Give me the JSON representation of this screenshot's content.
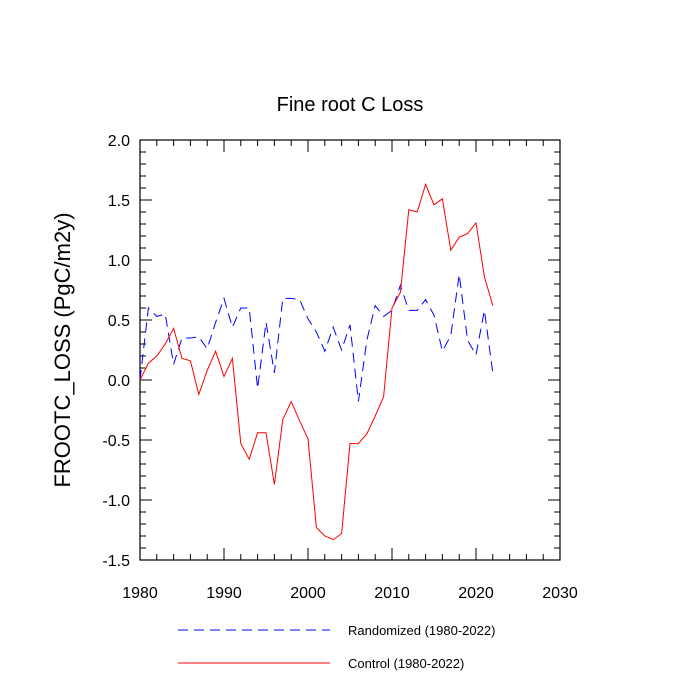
{
  "chart_data": {
    "type": "line",
    "title": "Fine root C Loss",
    "xlabel": "",
    "ylabel": "FROOTC_LOSS  (PgC/m2y)",
    "xlim": [
      1980,
      2030
    ],
    "ylim": [
      -1.5,
      2.0
    ],
    "xticks": [
      1980,
      1990,
      2000,
      2010,
      2020,
      2030
    ],
    "yticks": [
      "-1.5",
      "-1.0",
      "-0.5",
      "0.0",
      "0.5",
      "1.0",
      "1.5",
      "2.0"
    ],
    "grid": false,
    "legend_placement": "bottom",
    "x": [
      1980,
      1981,
      1982,
      1983,
      1984,
      1985,
      1986,
      1987,
      1988,
      1989,
      1990,
      1991,
      1992,
      1993,
      1994,
      1995,
      1996,
      1997,
      1998,
      1999,
      2000,
      2001,
      2002,
      2003,
      2004,
      2005,
      2006,
      2007,
      2008,
      2009,
      2010,
      2011,
      2012,
      2013,
      2014,
      2015,
      2016,
      2017,
      2018,
      2019,
      2020,
      2021,
      2022
    ],
    "series": [
      {
        "name": "Randomized (1980-2022)",
        "color": "#0000ff",
        "dash": "dashed",
        "values": [
          0.0,
          0.6,
          0.53,
          0.55,
          0.13,
          0.35,
          0.35,
          0.36,
          0.26,
          0.48,
          0.68,
          0.44,
          0.6,
          0.6,
          -0.07,
          0.48,
          0.06,
          0.68,
          0.68,
          0.67,
          0.51,
          0.4,
          0.24,
          0.44,
          0.25,
          0.46,
          -0.18,
          0.33,
          0.62,
          0.53,
          0.58,
          0.79,
          0.58,
          0.58,
          0.67,
          0.54,
          0.24,
          0.37,
          0.88,
          0.33,
          0.21,
          0.58,
          0.06
        ]
      },
      {
        "name": "Control (1980-2022)",
        "color": "#ff0000",
        "dash": "solid",
        "values": [
          0.0,
          0.14,
          0.2,
          0.3,
          0.43,
          0.18,
          0.16,
          -0.12,
          0.08,
          0.24,
          0.03,
          0.18,
          -0.53,
          -0.66,
          -0.44,
          -0.44,
          -0.87,
          -0.33,
          -0.18,
          -0.34,
          -0.49,
          -1.23,
          -1.3,
          -1.33,
          -1.28,
          -0.53,
          -0.53,
          -0.45,
          -0.3,
          -0.14,
          0.6,
          0.73,
          1.42,
          1.4,
          1.63,
          1.46,
          1.51,
          1.08,
          1.19,
          1.22,
          1.31,
          0.86,
          0.62
        ]
      }
    ]
  }
}
